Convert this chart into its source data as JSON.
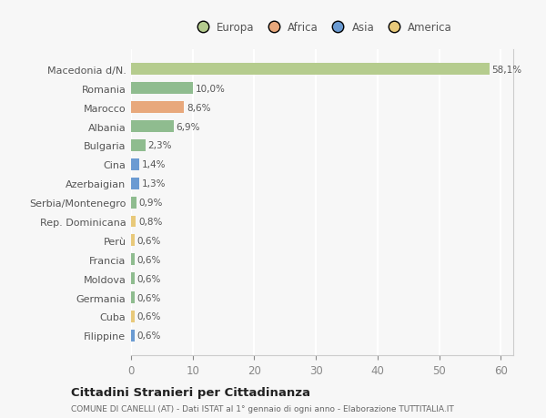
{
  "categories": [
    "Filippine",
    "Cuba",
    "Germania",
    "Moldova",
    "Francia",
    "Perù",
    "Rep. Dominicana",
    "Serbia/Montenegro",
    "Azerbaigian",
    "Cina",
    "Bulgaria",
    "Albania",
    "Marocco",
    "Romania",
    "Macedonia d/N."
  ],
  "values": [
    0.6,
    0.6,
    0.6,
    0.6,
    0.6,
    0.6,
    0.8,
    0.9,
    1.3,
    1.4,
    2.3,
    6.9,
    8.6,
    10.0,
    58.1
  ],
  "labels": [
    "0,6%",
    "0,6%",
    "0,6%",
    "0,6%",
    "0,6%",
    "0,6%",
    "0,8%",
    "0,9%",
    "1,3%",
    "1,4%",
    "2,3%",
    "6,9%",
    "8,6%",
    "10,0%",
    "58,1%"
  ],
  "colors": [
    "#6b9bd2",
    "#e8c97a",
    "#8fbc8f",
    "#8fbc8f",
    "#8fbc8f",
    "#e8c97a",
    "#e8c97a",
    "#8fbc8f",
    "#6b9bd2",
    "#6b9bd2",
    "#8fbc8f",
    "#8fbc8f",
    "#e8a87c",
    "#8fbc8f",
    "#b5cc8e"
  ],
  "legend_colors": {
    "Europa": "#b5cc8e",
    "Africa": "#e8a87c",
    "Asia": "#6b9bd2",
    "America": "#e8c97a"
  },
  "bg_color": "#f7f7f7",
  "grid_color": "#ffffff",
  "title": "Cittadini Stranieri per Cittadinanza",
  "subtitle": "COMUNE DI CANELLI (AT) - Dati ISTAT al 1° gennaio di ogni anno - Elaborazione TUTTITALIA.IT",
  "xlim": [
    0,
    62
  ],
  "xticks": [
    0,
    10,
    20,
    30,
    40,
    50,
    60
  ]
}
